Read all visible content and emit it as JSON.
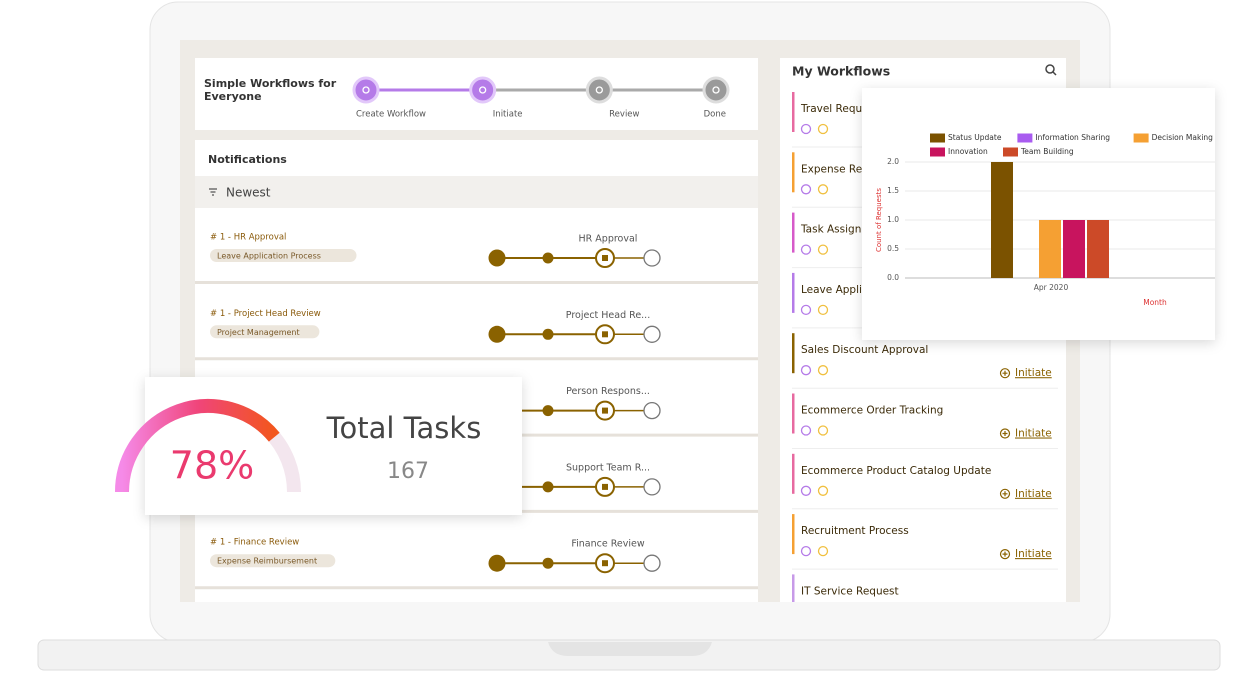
{
  "header": {
    "title": "Simple Workflows for Everyone",
    "steps": [
      "Create Workflow",
      "Initiate",
      "Review",
      "Done"
    ]
  },
  "notifications": {
    "title": "Notifications",
    "filter": "Newest",
    "items": [
      {
        "id": "# 1 - HR Approval",
        "tag": "Leave Application Process",
        "stage": "HR Approval"
      },
      {
        "id": "# 1 - Project Head Review",
        "tag": "Project Management",
        "stage": "Project Head Re..."
      },
      {
        "stage": "Person Respons..."
      },
      {
        "stage": "Support Team R..."
      },
      {
        "id": "# 1 - Finance Review",
        "tag": "Expense Reimbursement",
        "stage": "Finance Review"
      }
    ]
  },
  "workflows": {
    "title": "My Workflows",
    "items": [
      {
        "name": "Travel Requ"
      },
      {
        "name": "Expense Re"
      },
      {
        "name": "Task Assign"
      },
      {
        "name": "Leave Appli"
      },
      {
        "name": "Sales Discount Approval",
        "action": "Initiate"
      },
      {
        "name": "Ecommerce Order Tracking",
        "action": "Initiate"
      },
      {
        "name": "Ecommerce Product Catalog Update",
        "action": "Initiate"
      },
      {
        "name": "Recruitment Process",
        "action": "Initiate"
      },
      {
        "name": "IT Service Request"
      }
    ]
  },
  "gauge": {
    "value": 78,
    "value_label": "78%",
    "title": "Total Tasks",
    "count": 167
  },
  "chart_data": {
    "type": "bar",
    "categories": [
      "Apr 2020"
    ],
    "series": [
      {
        "name": "Status Update",
        "color": "#7b5200",
        "values": [
          2
        ]
      },
      {
        "name": "Information Sharing",
        "color": "#a95cf0",
        "values": [
          0
        ]
      },
      {
        "name": "Decision Making",
        "color": "#f5a033",
        "values": [
          1
        ]
      },
      {
        "name": "Innovation",
        "color": "#c8145e",
        "values": [
          1
        ]
      },
      {
        "name": "Team Building",
        "color": "#cc4a28",
        "values": [
          1
        ]
      }
    ],
    "y_label": "Count of Requests",
    "x_label": "Month",
    "ylim": [
      0,
      2
    ],
    "yticks": [
      {
        "value": 0,
        "label": "0.0"
      },
      {
        "value": 0.5,
        "label": "0.5"
      },
      {
        "value": 1,
        "label": "1.0"
      },
      {
        "value": 1.5,
        "label": "1.5"
      },
      {
        "value": 2,
        "label": "2.0"
      }
    ],
    "grid": true
  }
}
